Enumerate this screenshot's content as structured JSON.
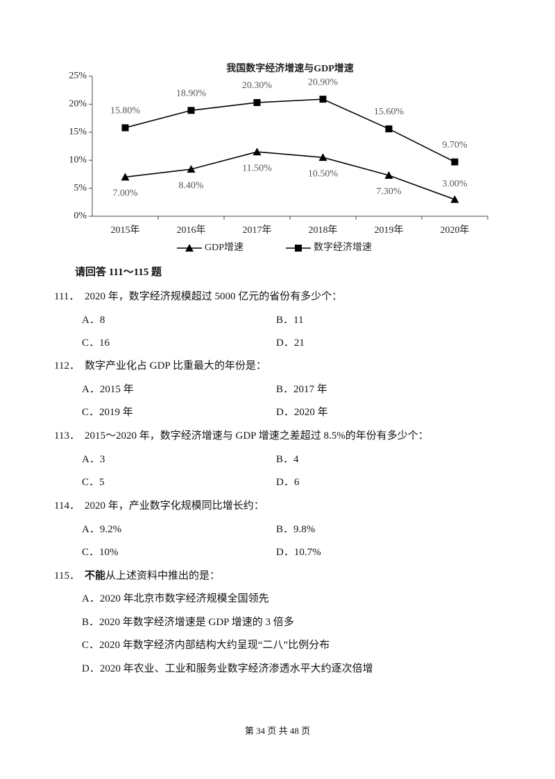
{
  "chart_data": {
    "type": "line",
    "title": "我国数字经济增速与GDP增速",
    "categories": [
      "2015年",
      "2016年",
      "2017年",
      "2018年",
      "2019年",
      "2020年"
    ],
    "series": [
      {
        "name": "GDP增速",
        "color": "#000000",
        "marker": "triangle",
        "values": [
          7.0,
          8.4,
          11.5,
          10.5,
          7.3,
          3.0
        ],
        "value_labels": [
          "7.00%",
          "8.40%",
          "11.50%",
          "10.50%",
          "7.30%",
          "3.00%"
        ]
      },
      {
        "name": "数字经济增速",
        "color": "#000000",
        "marker": "square",
        "values": [
          15.8,
          18.9,
          20.3,
          20.9,
          15.6,
          9.7
        ],
        "value_labels": [
          "15.80%",
          "18.90%",
          "20.30%",
          "20.90%",
          "15.60%",
          "9.70%"
        ]
      }
    ],
    "ylim": [
      0,
      25
    ],
    "yticks": [
      {
        "value": 0,
        "label": "0%"
      },
      {
        "value": 5,
        "label": "5%"
      },
      {
        "value": 10,
        "label": "10%"
      },
      {
        "value": 15,
        "label": "15%"
      },
      {
        "value": 20,
        "label": "20%"
      },
      {
        "value": 25,
        "label": "25%"
      }
    ],
    "grid": false,
    "legend": "bottom"
  },
  "questions_header": "请回答 111～115 题",
  "questions": [
    {
      "number": "111．",
      "stem": "2020 年，数字经济规模超过 5000 亿元的省份有多少个：",
      "options": [
        "A．8",
        "B．11",
        "C．16",
        "D．21"
      ]
    },
    {
      "number": "112．",
      "stem": "数字产业化占 GDP 比重最大的年份是：",
      "options": [
        "A．2015 年",
        "B．2017 年",
        "C．2019 年",
        "D．2020 年"
      ]
    },
    {
      "number": "113．",
      "stem": "2015～2020 年，数字经济增速与 GDP 增速之差超过 8.5%的年份有多少个：",
      "options": [
        "A．3",
        "B．4",
        "C．5",
        "D．6"
      ]
    },
    {
      "number": "114．",
      "stem": "2020 年，产业数字化规模同比增长约：",
      "options": [
        "A．9.2%",
        "B．9.8%",
        "C．10%",
        "D．10.7%"
      ]
    },
    {
      "number": "115．",
      "stem_bold": "不能",
      "stem": "从上述资料中推出的是：",
      "options": [
        "A．2020 年北京市数字经济规模全国领先",
        "B．2020 年数字经济增速是 GDP 增速的 3 倍多",
        "C．2020 年数字经济内部结构大约呈现“二八”比例分布",
        "D．2020 年农业、工业和服务业数字经济渗透水平大约逐次倍增"
      ]
    }
  ],
  "footer": "第 34 页   共 48 页"
}
